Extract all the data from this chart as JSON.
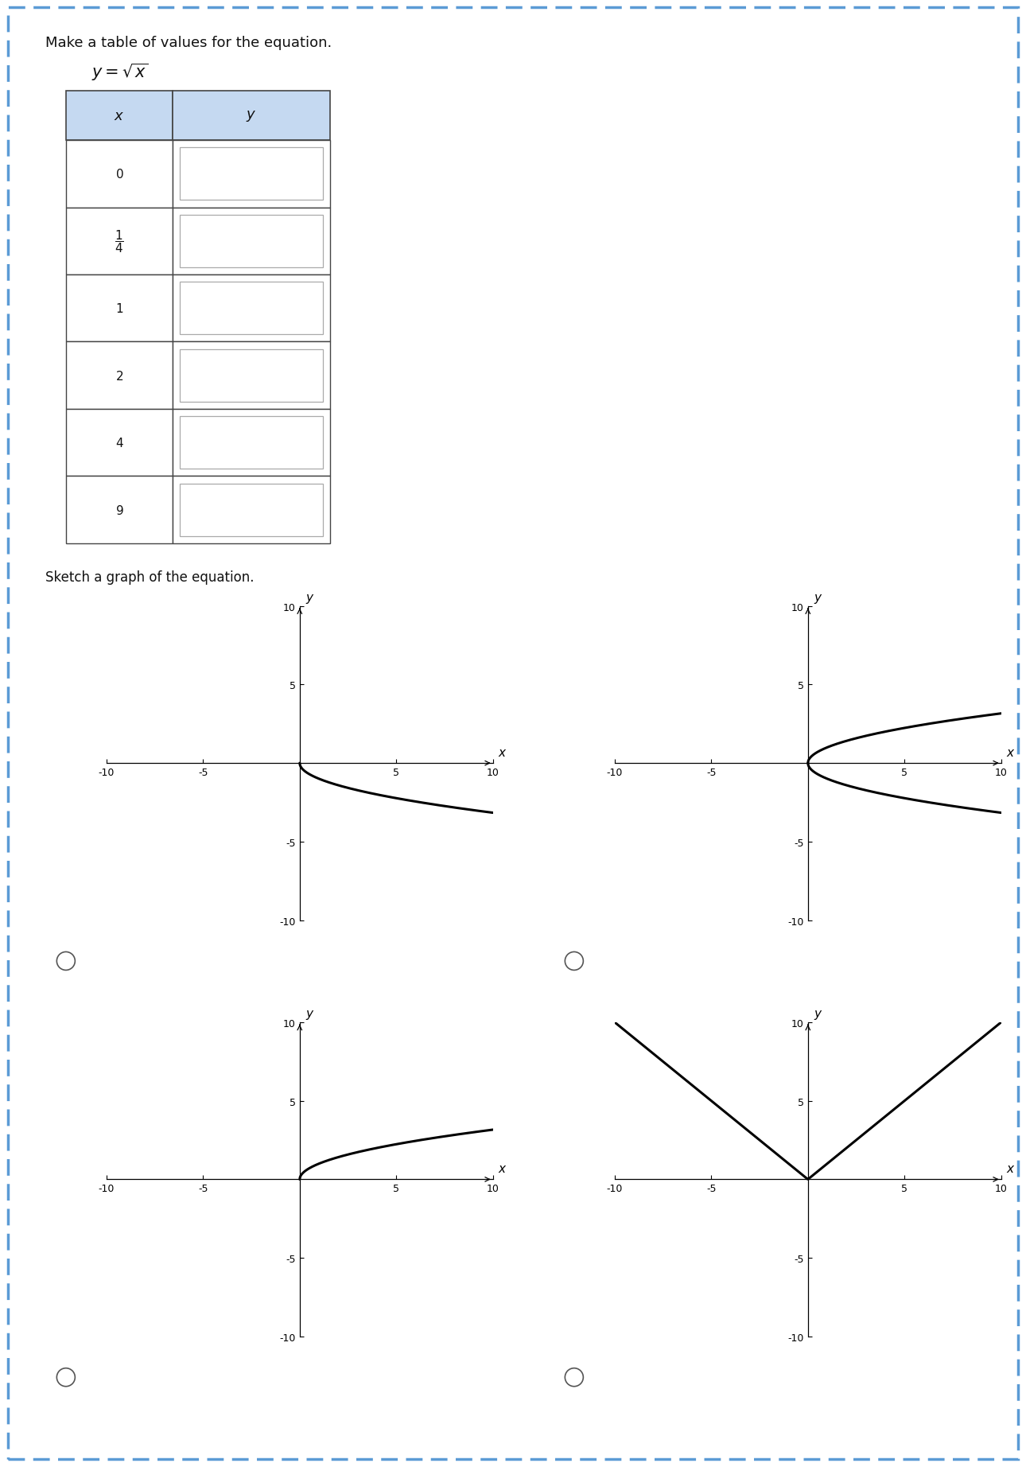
{
  "title_text": "Make a table of values for the equation.",
  "equation_latex": "$y = \\sqrt{x}$",
  "sketch_label": "Sketch a graph of the equation.",
  "bg_color": "#ffffff",
  "border_color": "#5b9bd5",
  "table_header_bg": "#c5d9f1",
  "curve_types": [
    "neg_sqrt",
    "both_sqrt",
    "pos_sqrt",
    "abs_x"
  ],
  "xlim": [
    -10,
    10
  ],
  "ylim": [
    -10,
    10
  ],
  "xtick_labels": [
    "-10",
    "-5",
    "5",
    "10"
  ],
  "xtick_vals": [
    -10,
    -5,
    5,
    10
  ],
  "ytick_labels": [
    "-10",
    "-5",
    "5",
    "10"
  ],
  "ytick_vals": [
    -10,
    -5,
    5,
    10
  ],
  "axis_label_fontsize": 11,
  "tick_fontsize": 9,
  "line_color": "#000000",
  "line_width": 2.2
}
